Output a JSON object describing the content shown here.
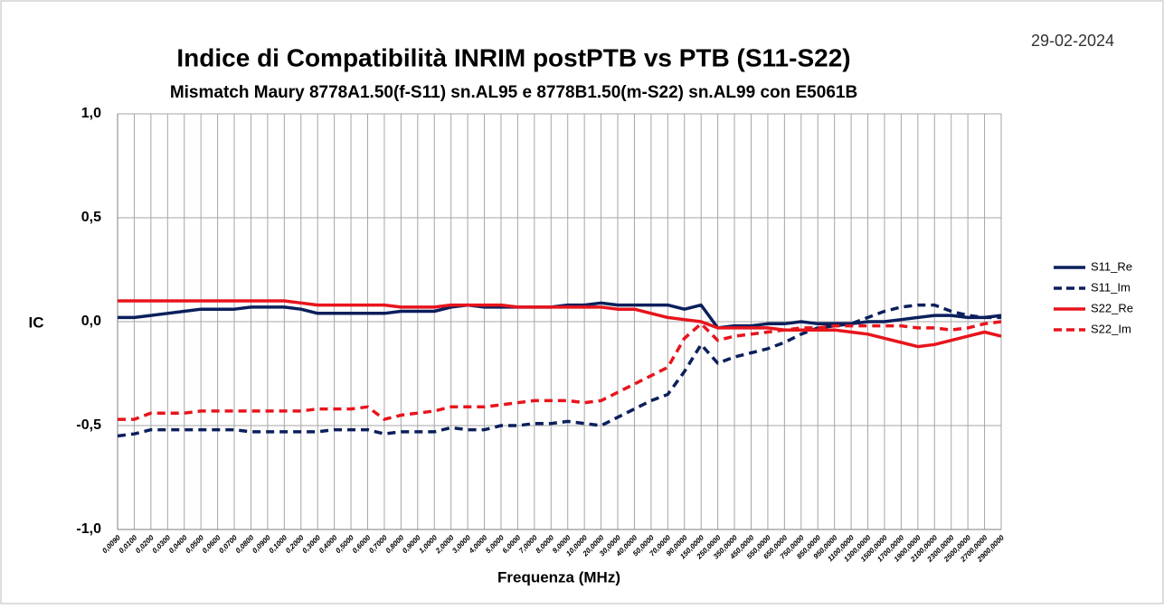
{
  "chart_data": {
    "type": "line",
    "title": "Indice di Compatibilità  INRIM postPTB vs PTB (S11-S22)",
    "subtitle": "Mismatch Maury 8778A1.50(f-S11) sn.AL95 e 8778B1.50(m-S22) sn.AL99 con E5061B",
    "date": "29-02-2024",
    "y_label": "IC",
    "x_label": "Frequenza (MHz)",
    "categories": [
      "0,0090",
      "0,0100",
      "0,0200",
      "0,0300",
      "0,0400",
      "0,0500",
      "0,0600",
      "0,0700",
      "0,0800",
      "0,0900",
      "0,1000",
      "0,2000",
      "0,3000",
      "0,4000",
      "0,5000",
      "0,6000",
      "0,7000",
      "0,8000",
      "0,9000",
      "1,0000",
      "2,0000",
      "3,0000",
      "4,0000",
      "5,0000",
      "6,0000",
      "7,0000",
      "8,0000",
      "9,0000",
      "10,0000",
      "20,0000",
      "30,0000",
      "40,0000",
      "50,0000",
      "70,0000",
      "90,0000",
      "150,0000",
      "250,0000",
      "350,0000",
      "450,0000",
      "550,0000",
      "650,0000",
      "750,0000",
      "850,0000",
      "950,0000",
      "1100,0000",
      "1300,0000",
      "1500,0000",
      "1700,0000",
      "1900,0000",
      "2100,0000",
      "2300,0000",
      "2500,0000",
      "2700,0000",
      "2900,0000"
    ],
    "series": [
      {
        "name": "S11_Re",
        "color": "#0b1f5c",
        "dash": false,
        "values": [
          0.02,
          0.02,
          0.03,
          0.04,
          0.05,
          0.06,
          0.06,
          0.06,
          0.07,
          0.07,
          0.07,
          0.06,
          0.04,
          0.04,
          0.04,
          0.04,
          0.04,
          0.05,
          0.05,
          0.05,
          0.07,
          0.08,
          0.07,
          0.07,
          0.07,
          0.07,
          0.07,
          0.08,
          0.08,
          0.09,
          0.08,
          0.08,
          0.08,
          0.08,
          0.06,
          0.08,
          -0.03,
          -0.02,
          -0.02,
          -0.01,
          -0.01,
          0,
          -0.01,
          -0.01,
          -0.01,
          0,
          0,
          0.01,
          0.02,
          0.03,
          0.03,
          0.02,
          0.02,
          0.03
        ]
      },
      {
        "name": "S11_Im",
        "color": "#0b1f5c",
        "dash": true,
        "values": [
          -0.55,
          -0.54,
          -0.52,
          -0.52,
          -0.52,
          -0.52,
          -0.52,
          -0.52,
          -0.53,
          -0.53,
          -0.53,
          -0.53,
          -0.53,
          -0.52,
          -0.52,
          -0.52,
          -0.54,
          -0.53,
          -0.53,
          -0.53,
          -0.51,
          -0.52,
          -0.52,
          -0.5,
          -0.5,
          -0.49,
          -0.49,
          -0.48,
          -0.49,
          -0.5,
          -0.46,
          -0.42,
          -0.38,
          -0.35,
          -0.24,
          -0.11,
          -0.2,
          -0.17,
          -0.15,
          -0.13,
          -0.1,
          -0.06,
          -0.03,
          -0.02,
          -0.01,
          0.02,
          0.05,
          0.07,
          0.08,
          0.08,
          0.05,
          0.03,
          0.02,
          0.02
        ]
      },
      {
        "name": "S22_Re",
        "color": "#e8141c",
        "dash": false,
        "values": [
          0.1,
          0.1,
          0.1,
          0.1,
          0.1,
          0.1,
          0.1,
          0.1,
          0.1,
          0.1,
          0.1,
          0.09,
          0.08,
          0.08,
          0.08,
          0.08,
          0.08,
          0.07,
          0.07,
          0.07,
          0.08,
          0.08,
          0.08,
          0.08,
          0.07,
          0.07,
          0.07,
          0.07,
          0.07,
          0.07,
          0.06,
          0.06,
          0.04,
          0.02,
          0.01,
          0.0,
          -0.03,
          -0.03,
          -0.03,
          -0.03,
          -0.04,
          -0.04,
          -0.04,
          -0.04,
          -0.05,
          -0.06,
          -0.08,
          -0.1,
          -0.12,
          -0.11,
          -0.09,
          -0.07,
          -0.05,
          -0.07
        ]
      },
      {
        "name": "S22_Im",
        "color": "#e8141c",
        "dash": true,
        "values": [
          -0.47,
          -0.47,
          -0.44,
          -0.44,
          -0.44,
          -0.43,
          -0.43,
          -0.43,
          -0.43,
          -0.43,
          -0.43,
          -0.43,
          -0.42,
          -0.42,
          -0.42,
          -0.41,
          -0.47,
          -0.45,
          -0.44,
          -0.43,
          -0.41,
          -0.41,
          -0.41,
          -0.4,
          -0.39,
          -0.38,
          -0.38,
          -0.38,
          -0.39,
          -0.38,
          -0.34,
          -0.3,
          -0.26,
          -0.22,
          -0.08,
          -0.01,
          -0.09,
          -0.07,
          -0.06,
          -0.05,
          -0.04,
          -0.03,
          -0.03,
          -0.02,
          -0.02,
          -0.02,
          -0.02,
          -0.02,
          -0.03,
          -0.03,
          -0.04,
          -0.03,
          -0.01,
          0.0
        ]
      }
    ],
    "ylim": [
      -1,
      1
    ],
    "yticks": [
      {
        "value": -1,
        "label": "-1,0"
      },
      {
        "value": -0.5,
        "label": "-0,5"
      },
      {
        "value": 0,
        "label": "0,0"
      },
      {
        "value": 0.5,
        "label": "0,5"
      },
      {
        "value": 1,
        "label": "1,0"
      }
    ],
    "grid": true,
    "legend": "right"
  }
}
